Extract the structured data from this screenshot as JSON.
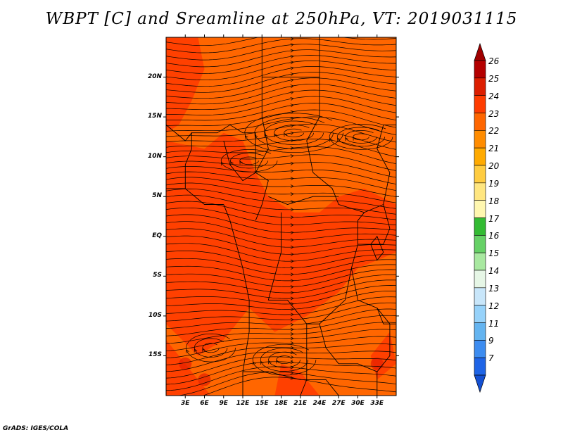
{
  "title": "WBPT [C] and Sreamline at 250hPa, VT: 2019031115",
  "footer": "GrADS: IGES/COLA",
  "map": {
    "lon_range": [
      0,
      36
    ],
    "lat_range": [
      -20,
      25
    ],
    "x_ticks": [
      "3E",
      "6E",
      "9E",
      "12E",
      "15E",
      "18E",
      "21E",
      "24E",
      "27E",
      "30E",
      "33E"
    ],
    "x_tick_values": [
      3,
      6,
      9,
      12,
      15,
      18,
      21,
      24,
      27,
      30,
      33
    ],
    "y_ticks": [
      "20N",
      "15N",
      "10N",
      "5N",
      "EQ",
      "5S",
      "10S",
      "15S"
    ],
    "y_tick_values": [
      20,
      15,
      10,
      5,
      0,
      -5,
      -10,
      -15
    ],
    "field_colors": {
      "dominant": "#ff6600",
      "warmer": "#ff3c00",
      "hot": "#e61e00"
    }
  },
  "colorbar": {
    "labels": [
      "26",
      "25",
      "24",
      "23",
      "22",
      "21",
      "20",
      "19",
      "18",
      "17",
      "16",
      "15",
      "14",
      "13",
      "12",
      "11",
      "9",
      "7"
    ],
    "colors": [
      "#b40000",
      "#dc1e00",
      "#ff3c00",
      "#ff6600",
      "#ff8c00",
      "#ffaa00",
      "#ffcc40",
      "#ffe680",
      "#fff7b0",
      "#33bb33",
      "#66d166",
      "#a8e8a0",
      "#e6f6e6",
      "#c8e6fa",
      "#96d2fa",
      "#64b4f0",
      "#3c8cf0",
      "#1e64e6"
    ],
    "top_arrow_color": "#a00000",
    "bottom_arrow_color": "#1450d2"
  }
}
